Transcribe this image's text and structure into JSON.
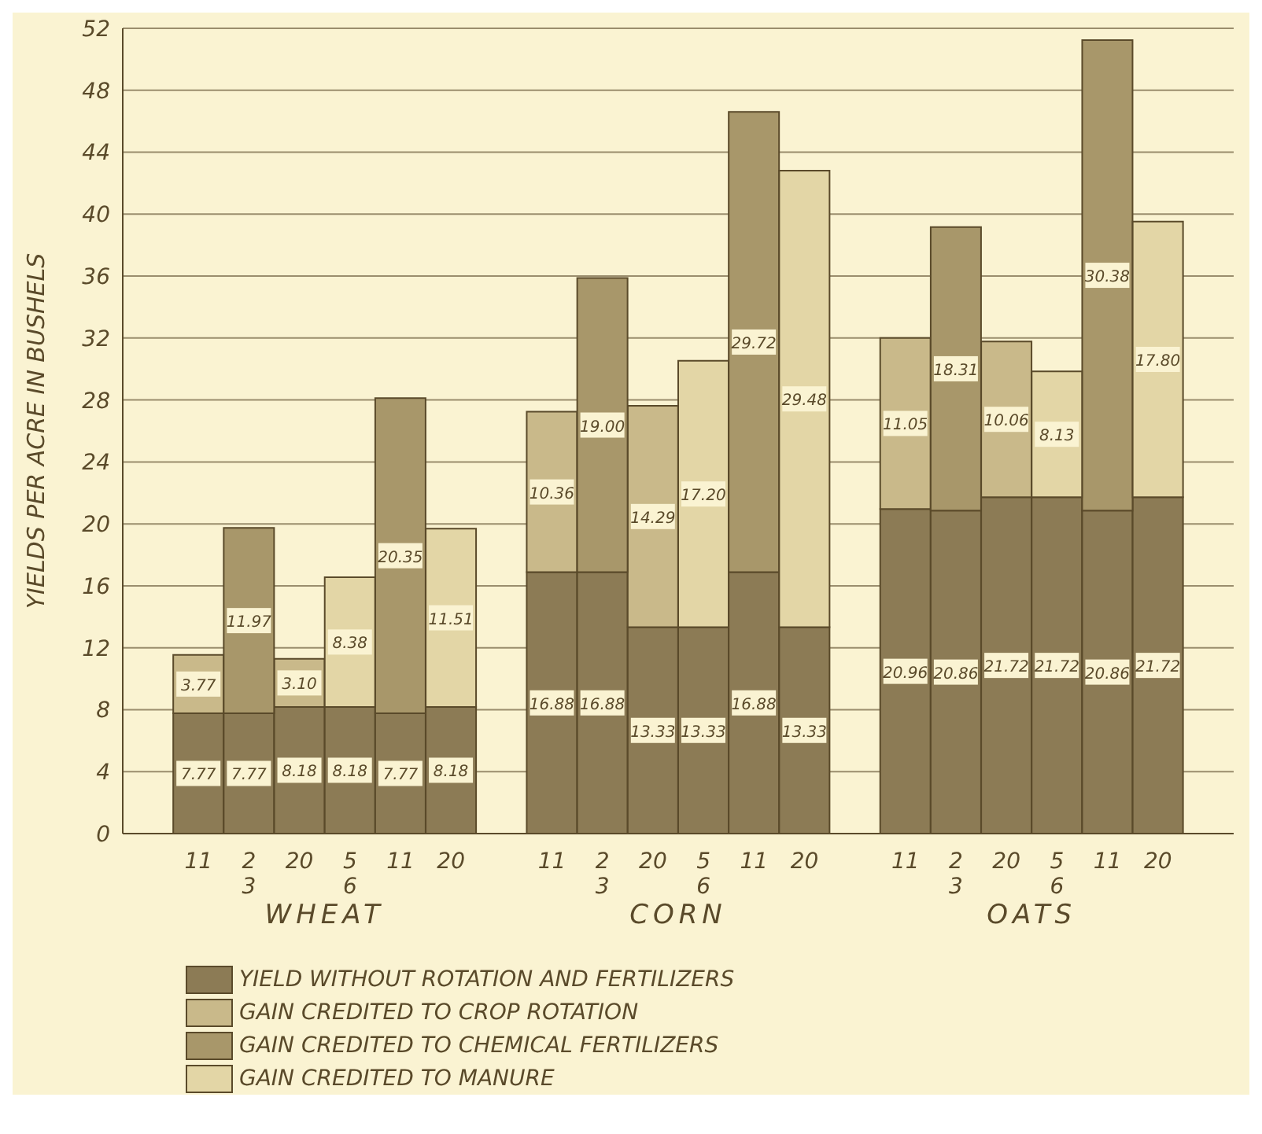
{
  "chart_data": {
    "type": "bar",
    "stacked": true,
    "ylabel": "YIELDS PER ACRE IN BUSHELS",
    "categories": [
      null,
      "11",
      "2\n3",
      "20",
      "5\n6",
      "11",
      "20",
      null,
      "11",
      "2\n3",
      "20",
      "5\n6",
      "11",
      "20",
      null,
      "11",
      "2\n3",
      "20",
      "5\n6",
      "11",
      "20",
      null
    ],
    "series": [
      {
        "name": "YIELD WITHOUT ROTATION AND FERTILIZERS",
        "color": "#8c7b55",
        "values": [
          null,
          7.77,
          7.77,
          8.18,
          8.18,
          7.77,
          8.18,
          null,
          16.88,
          16.88,
          13.33,
          13.33,
          16.88,
          13.33,
          null,
          20.96,
          20.86,
          21.72,
          21.72,
          20.86,
          21.72,
          null
        ],
        "value_labels": [
          null,
          "7.77",
          "7.77",
          "8.18",
          "8.18",
          "7.77",
          "8.18",
          null,
          "16.88",
          "16.88",
          "13.33",
          "13.33",
          "16.88",
          "13.33",
          null,
          "20.96",
          "20.86",
          "21.72",
          "21.72",
          "20.86",
          "21.72",
          null
        ]
      },
      {
        "name": "GAIN CREDITED TO CROP ROTATION",
        "color": "#c9b98a",
        "values": [
          null,
          3.77,
          null,
          3.1,
          null,
          null,
          null,
          null,
          10.36,
          null,
          14.29,
          null,
          null,
          null,
          null,
          11.05,
          null,
          10.06,
          null,
          null,
          null,
          null
        ],
        "value_labels": [
          null,
          "3.77",
          null,
          "3.10",
          null,
          null,
          null,
          null,
          "10.36",
          null,
          "14.29",
          null,
          null,
          null,
          null,
          "11.05",
          null,
          "10.06",
          null,
          null,
          null,
          null
        ]
      },
      {
        "name": "GAIN CREDITED TO CHEMICAL FERTILIZERS",
        "color": "#a8976a",
        "values": [
          null,
          null,
          11.97,
          null,
          null,
          20.35,
          null,
          null,
          null,
          19.0,
          null,
          null,
          29.72,
          null,
          null,
          null,
          18.31,
          null,
          null,
          30.38,
          null,
          null
        ],
        "value_labels": [
          null,
          null,
          "11.97",
          null,
          null,
          "20.35",
          null,
          null,
          null,
          "19.00",
          null,
          null,
          "29.72",
          null,
          null,
          null,
          "18.31",
          null,
          null,
          "30.38",
          null,
          null
        ]
      },
      {
        "name": "GAIN CREDITED TO MANURE",
        "color": "#e3d6a6",
        "values": [
          null,
          null,
          null,
          null,
          8.38,
          null,
          11.51,
          null,
          null,
          null,
          null,
          17.2,
          null,
          29.48,
          null,
          null,
          null,
          null,
          8.13,
          null,
          17.8,
          null
        ],
        "value_labels": [
          null,
          null,
          null,
          null,
          "8.38",
          null,
          "11.51",
          null,
          null,
          null,
          null,
          "17.20",
          null,
          "29.48",
          null,
          null,
          null,
          null,
          "8.13",
          null,
          "17.80",
          null
        ]
      }
    ],
    "ylim": [
      0,
      52
    ],
    "yticks": [
      0,
      4,
      8,
      12,
      16,
      20,
      24,
      28,
      32,
      36,
      40,
      44,
      48,
      52
    ],
    "grid": "y",
    "legend": "bottom",
    "annotations": [
      "WHEAT",
      "CORN",
      "OATS"
    ]
  }
}
